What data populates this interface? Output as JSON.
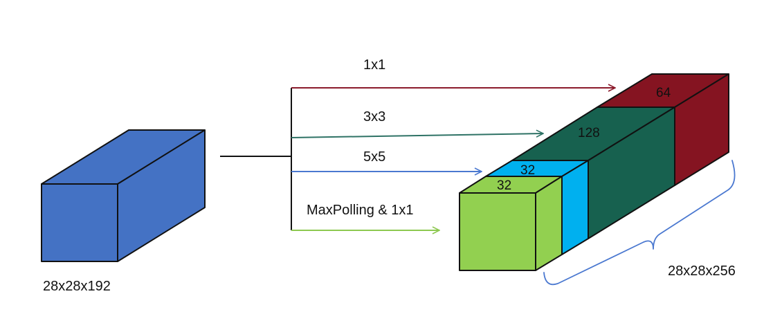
{
  "input": {
    "label": "28x28x192",
    "color": "#4472C4"
  },
  "branches": [
    {
      "label": "1x1",
      "color": "#8B1A2B"
    },
    {
      "label": "3x3",
      "color": "#2E7265"
    },
    {
      "label": "5x5",
      "color": "#4A78D0"
    },
    {
      "label": "MaxPolling & 1x1",
      "color": "#8DC850"
    }
  ],
  "output": {
    "label": "28x28x256",
    "segments": [
      {
        "channels": "64",
        "color": "#851421"
      },
      {
        "channels": "128",
        "color": "#17614F"
      },
      {
        "channels": "32",
        "color": "#00B0EF"
      },
      {
        "channels": "32",
        "color": "#92D050"
      }
    ],
    "brace_color": "#4A78D0"
  }
}
